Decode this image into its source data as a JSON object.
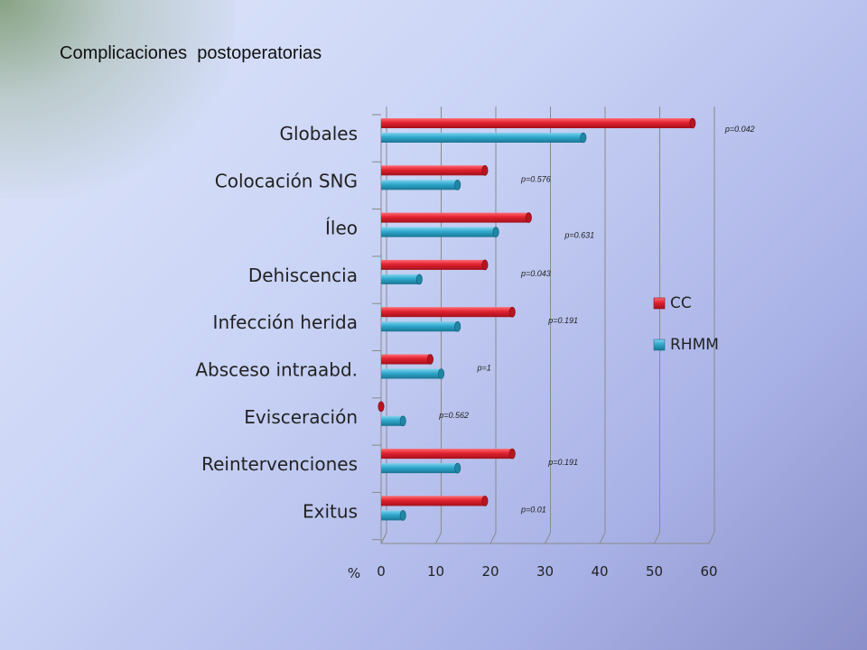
{
  "slide": {
    "title": "Complicaciones  postoperatorias"
  },
  "chart_data": {
    "type": "bar",
    "orientation": "horizontal",
    "style": "3d-cylinder",
    "title": "Complicaciones  postoperatorias",
    "xlabel": "%",
    "ylabel": "",
    "xlim": [
      0,
      60
    ],
    "xticks": [
      0,
      10,
      20,
      30,
      40,
      50,
      60
    ],
    "grid": true,
    "legend_position": "right",
    "categories": [
      "Globales",
      "Colocación SNG",
      "Íleo",
      "Dehiscencia",
      "Infección herida",
      "Absceso intraabd.",
      "Evisceración",
      "Reintervenciones",
      "Exitus"
    ],
    "series": [
      {
        "name": "CC",
        "color": "#e0212f",
        "values": [
          57,
          19,
          27,
          19,
          24,
          9,
          0,
          24,
          19
        ]
      },
      {
        "name": "RHMM",
        "color": "#2fa8cc",
        "values": [
          37,
          14,
          21,
          7,
          14,
          11,
          4,
          14,
          4
        ]
      }
    ],
    "annotations": [
      "p=0.042",
      "p=0.576",
      "p=0.631",
      "p=0.043",
      "p=0.191",
      "p=1",
      "p=0.562",
      "p=0.191",
      "p=0.01"
    ]
  }
}
